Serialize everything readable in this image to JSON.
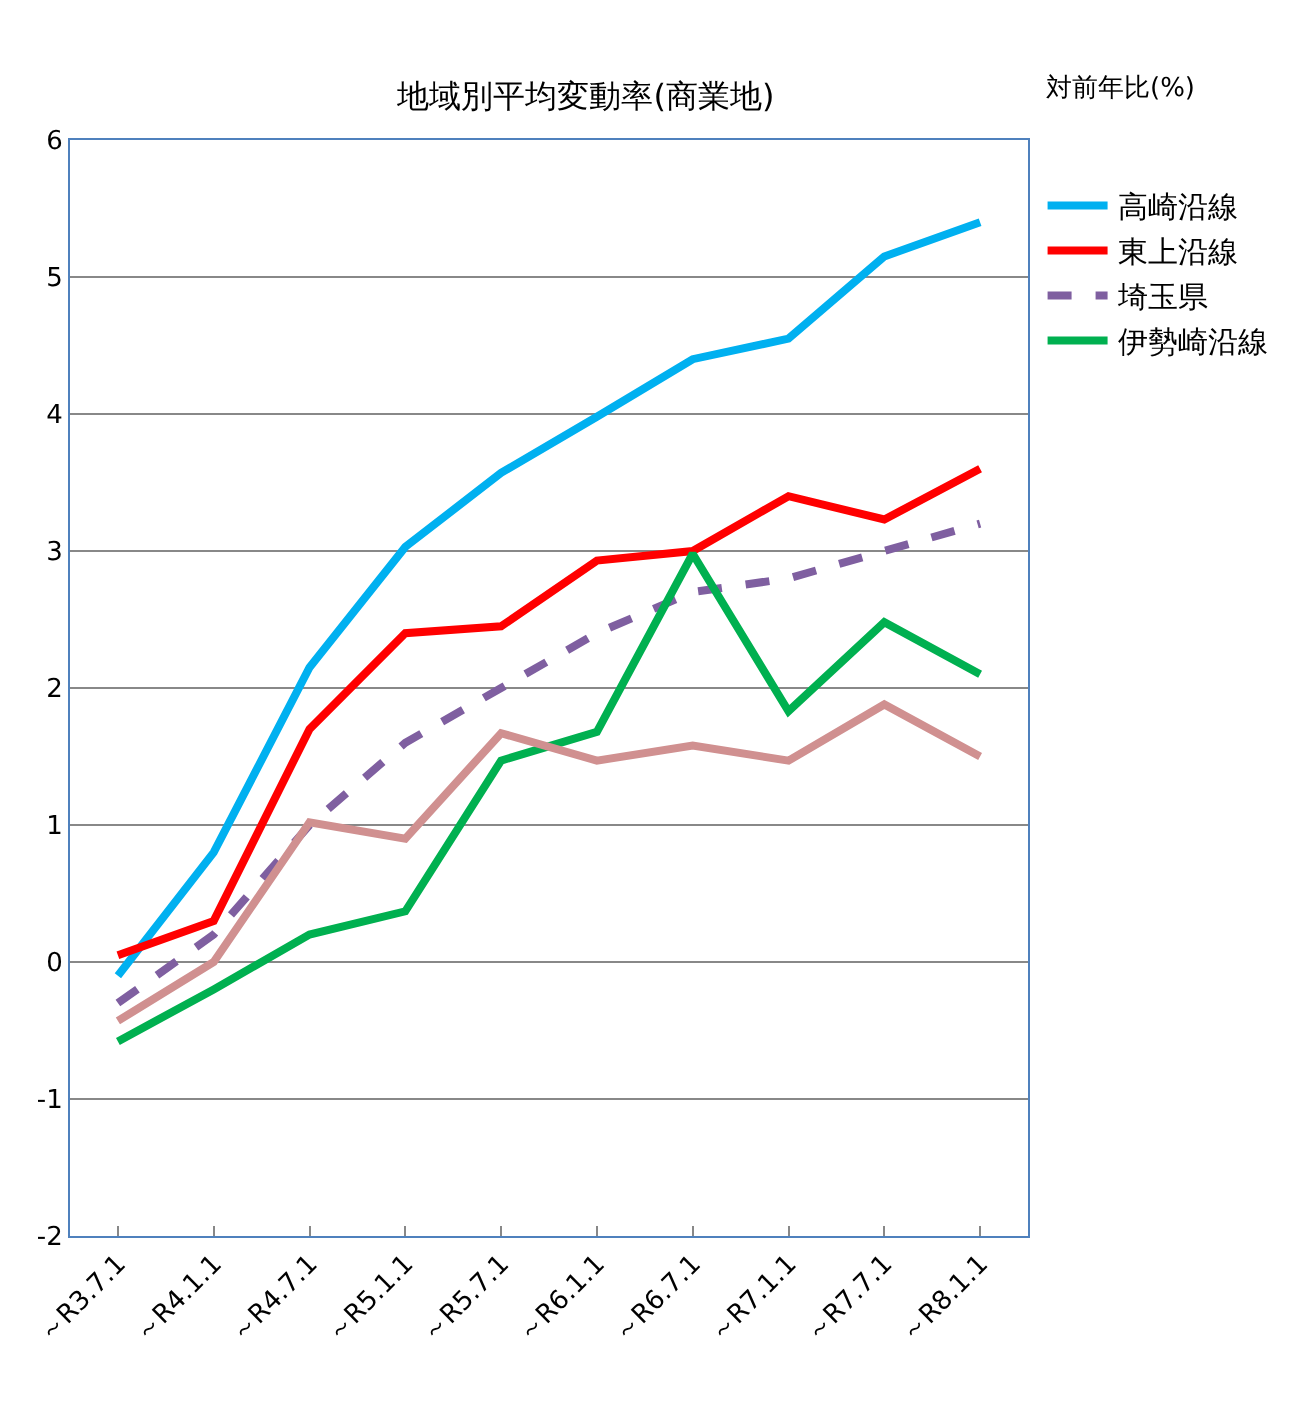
{
  "chart_data": {
    "type": "line",
    "title": "地域別平均変動率(商業地)",
    "ylabel": "対前年比(%)",
    "categories": [
      "～R3.7.1",
      "～R4.1.1",
      "～R4.7.1",
      "～R5.1.1",
      "～R5.7.1",
      "～R6.1.1",
      "～R6.7.1",
      "～R7.1.1",
      "～R7.7.1",
      "～R8.1.1"
    ],
    "series": [
      {
        "name": "高崎沿線",
        "color": "#00b0f0",
        "values": [
          -0.1,
          0.8,
          2.15,
          3.03,
          3.57,
          3.98,
          4.4,
          4.55,
          5.15,
          5.4
        ]
      },
      {
        "name": "東上沿線",
        "color": "#ff0000",
        "values": [
          0.05,
          0.3,
          1.7,
          2.4,
          2.45,
          2.93,
          3.0,
          3.4,
          3.23,
          3.6
        ]
      },
      {
        "name": "埼玉県",
        "color": "#7f5fa0",
        "line_style": "dashed",
        "values": [
          -0.3,
          0.2,
          1.0,
          1.6,
          2.0,
          2.4,
          2.7,
          2.8,
          3.0,
          3.2
        ]
      },
      {
        "name": "伊勢崎沿線",
        "color": "#00b050",
        "values": [
          -0.58,
          -0.2,
          0.2,
          0.37,
          1.47,
          1.68,
          2.98,
          1.83,
          2.48,
          2.1
        ]
      },
      {
        "color": "#d09090",
        "values": [
          -0.43,
          0.0,
          1.02,
          0.9,
          1.67,
          1.47,
          1.58,
          1.47,
          1.88,
          1.5
        ]
      }
    ],
    "ylim": [
      -2,
      6
    ],
    "yticks": [
      -2,
      -1,
      0,
      1,
      2,
      3,
      4,
      5,
      6
    ],
    "grid": "y",
    "legend": "right",
    "line_style": "solid",
    "marker": "none"
  }
}
